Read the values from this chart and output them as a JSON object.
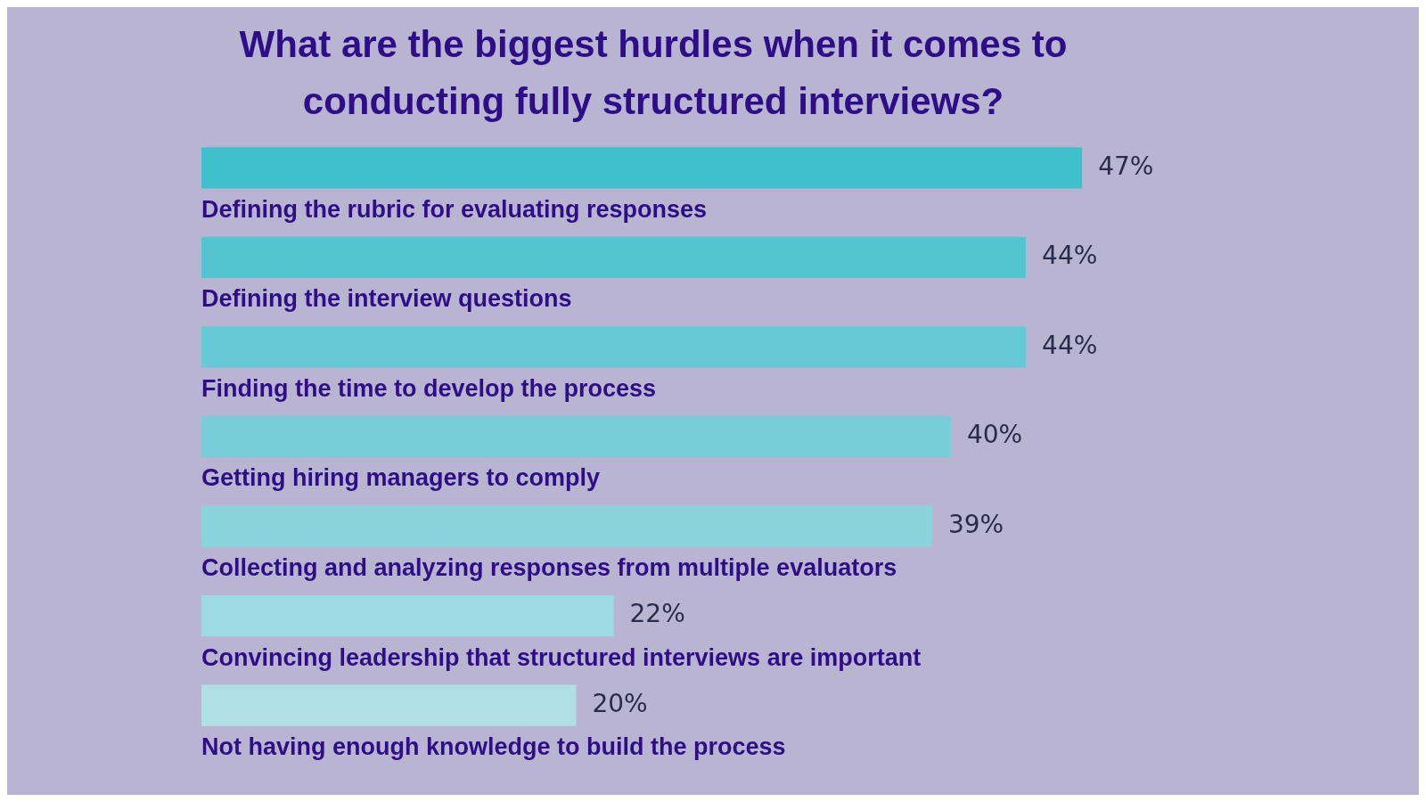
{
  "chart_data": {
    "type": "bar",
    "orientation": "horizontal",
    "title": "What are the biggest hurdles when it comes to conducting fully structured interviews?",
    "categories": [
      "Defining the rubric for evaluating responses",
      "Defining the interview questions",
      "Finding the time to develop the process",
      "Getting hiring managers to comply",
      "Collecting and analyzing responses from multiple evaluators",
      "Convincing leadership that structured interviews are important",
      "Not having enough knowledge to build the process"
    ],
    "values": [
      47,
      44,
      44,
      40,
      39,
      22,
      20
    ],
    "value_labels": [
      "47%",
      "44%",
      "44%",
      "40%",
      "39%",
      "22%",
      "20%"
    ],
    "colors": [
      "#40c0cc",
      "#53c5d0",
      "#66c9d6",
      "#77ced8",
      "#89d4dc",
      "#9ddbe2",
      "#b0dfe5"
    ],
    "legend": false,
    "tick_labels": false
  }
}
